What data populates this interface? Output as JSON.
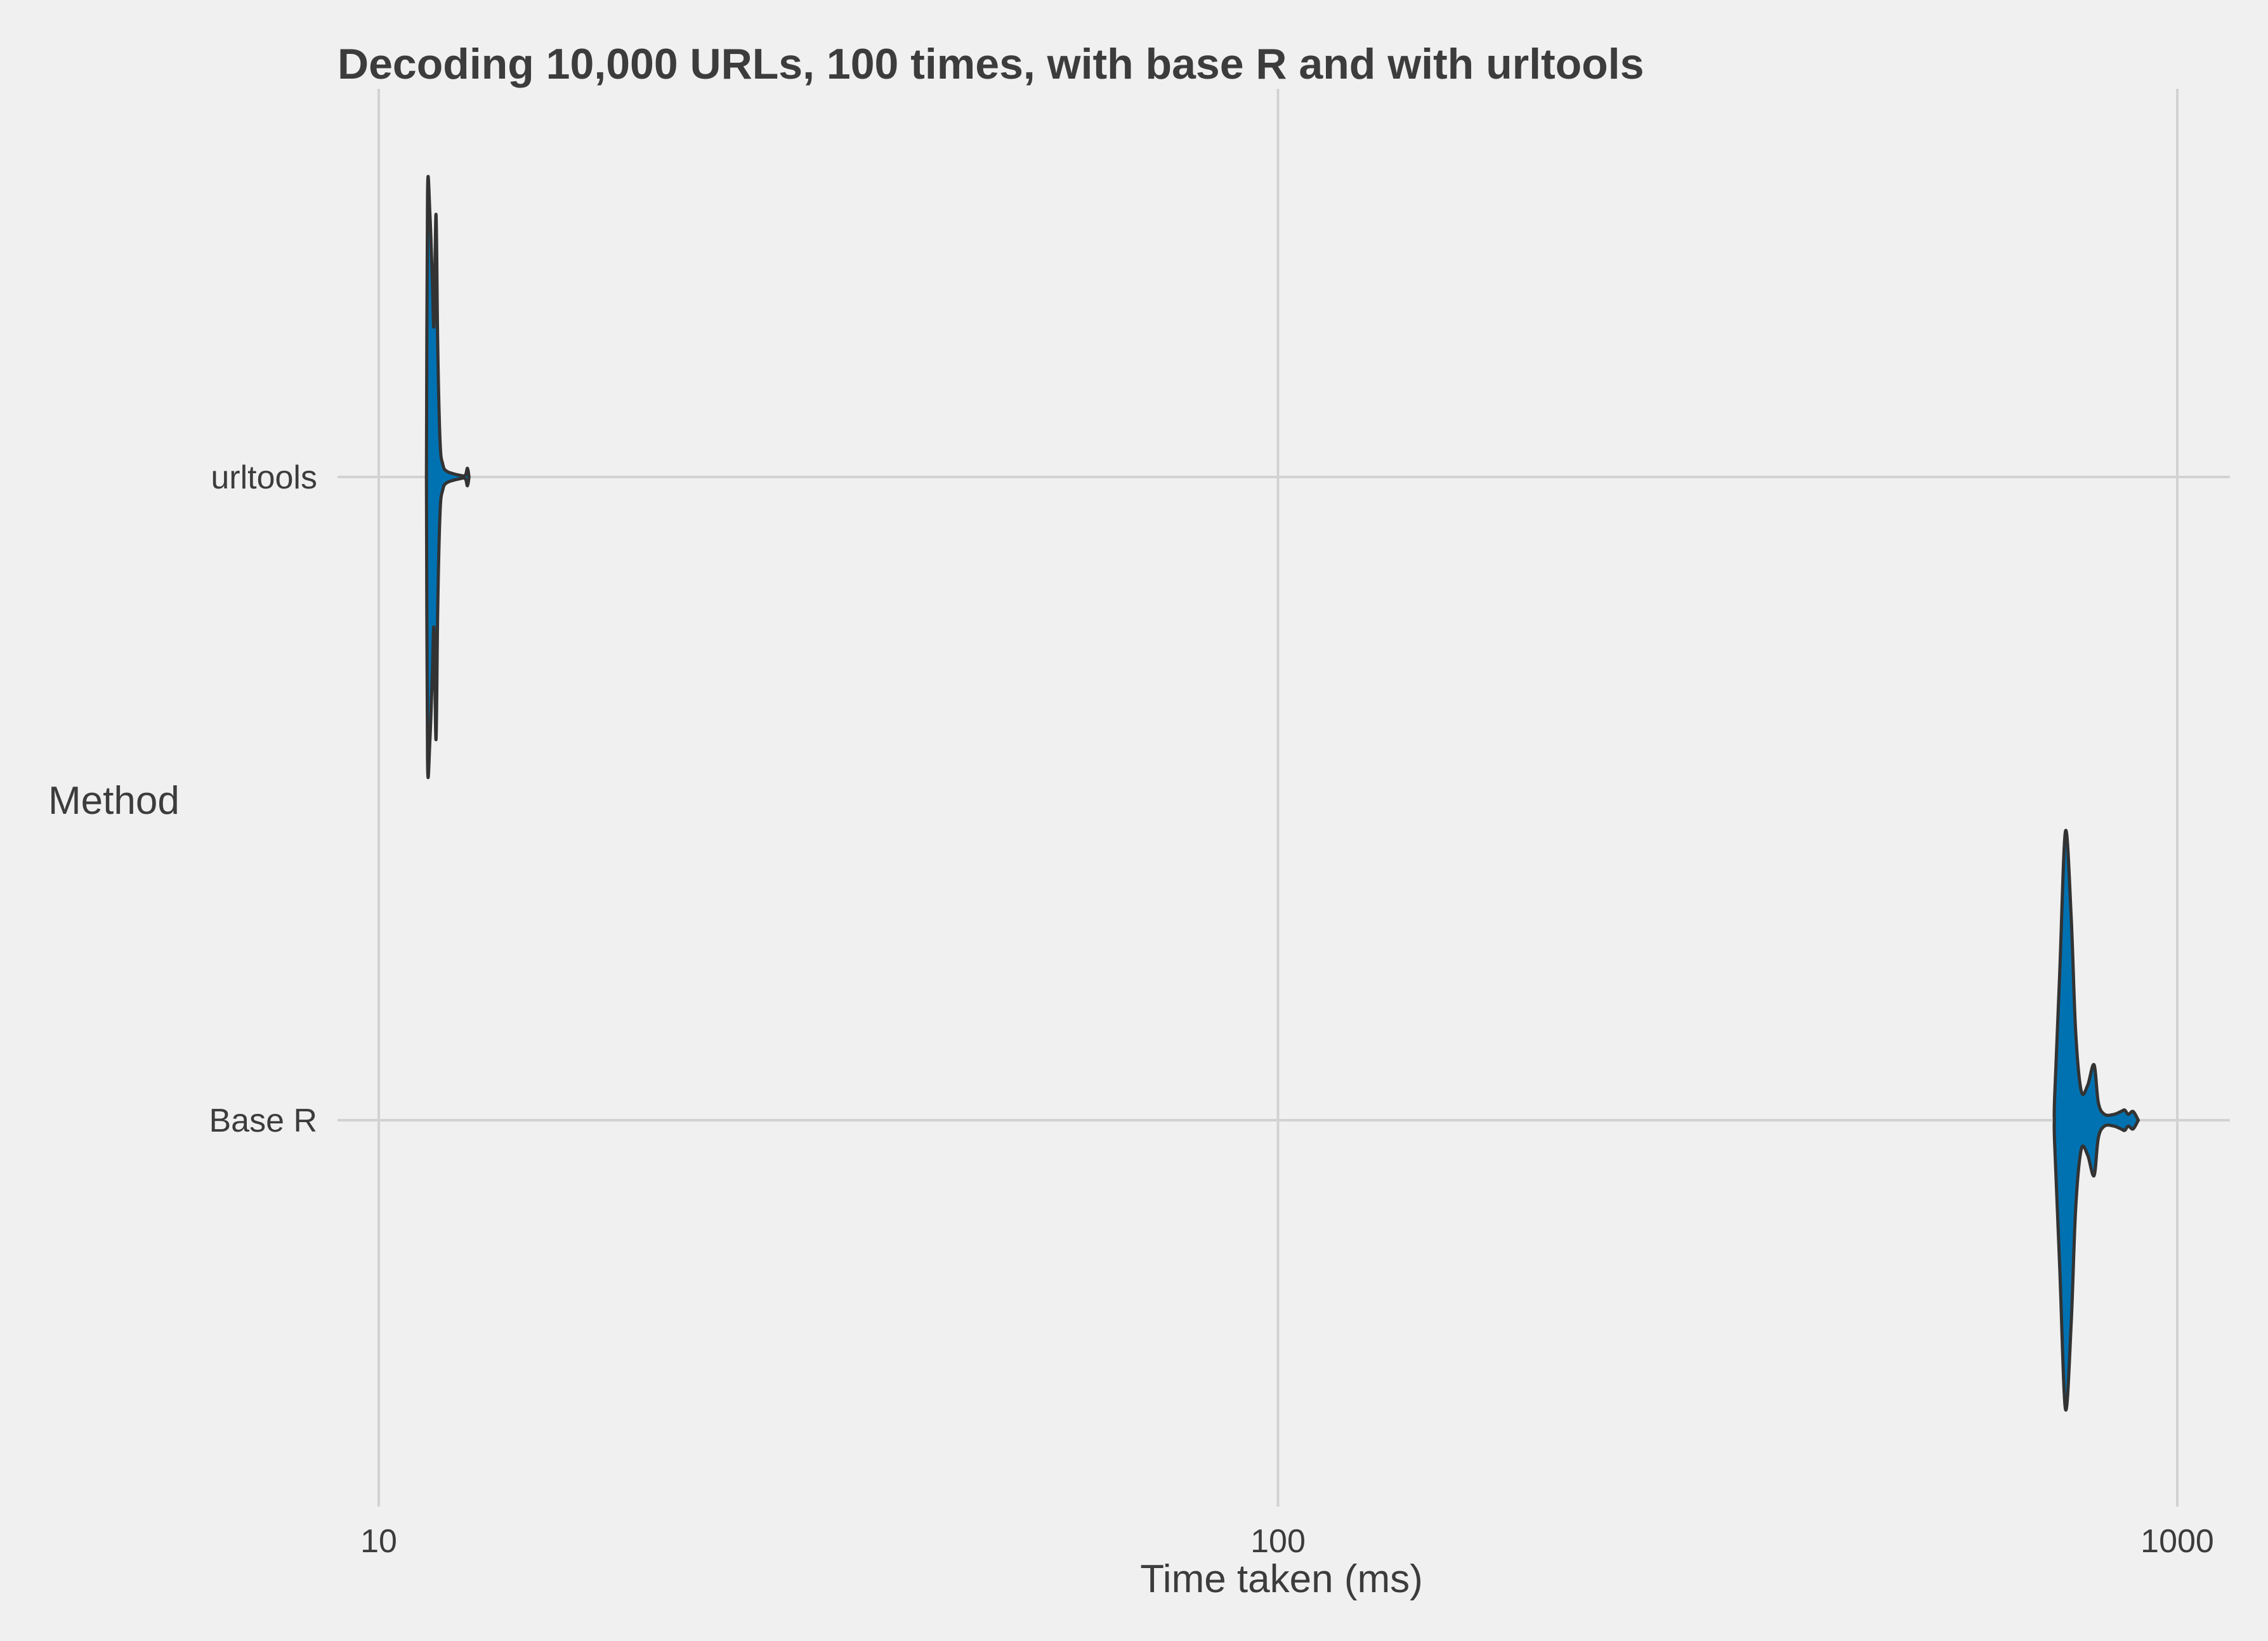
{
  "chart_data": {
    "type": "violin",
    "title": "Decoding 10,000 URLs, 100 times, with base R and with urltools",
    "xlabel": "Time taken (ms)",
    "ylabel": "Method",
    "x_scale": "log10",
    "xlim": [
      8.7,
      1090
    ],
    "x_ticks": [
      10,
      100,
      1000
    ],
    "x_tick_labels": [
      "10",
      "100",
      "1000"
    ],
    "categories": [
      "urltools",
      "Base R"
    ],
    "grid": true,
    "fill_color": "#0072b2",
    "outline_color": "#333333",
    "series": [
      {
        "category": "urltools",
        "min": 11.3,
        "max": 12.6,
        "profile": [
          [
            11.3,
            0.0
          ],
          [
            11.33,
            0.97
          ],
          [
            11.4,
            0.9
          ],
          [
            11.47,
            0.68
          ],
          [
            11.52,
            0.52
          ],
          [
            11.58,
            0.9
          ],
          [
            11.63,
            0.45
          ],
          [
            11.7,
            0.12
          ],
          [
            11.78,
            0.045
          ],
          [
            11.9,
            0.02
          ],
          [
            12.3,
            0.006
          ],
          [
            12.48,
            0.006
          ],
          [
            12.55,
            0.03
          ],
          [
            12.6,
            0.0
          ]
        ]
      },
      {
        "category": "Base R",
        "min": 730,
        "max": 905,
        "profile": [
          [
            730,
            0.0
          ],
          [
            730.5,
            0.08
          ],
          [
            740,
            0.5
          ],
          [
            751,
            0.99
          ],
          [
            762,
            0.7
          ],
          [
            771,
            0.3
          ],
          [
            782,
            0.1
          ],
          [
            795,
            0.12
          ],
          [
            808,
            0.19
          ],
          [
            817,
            0.06
          ],
          [
            830,
            0.02
          ],
          [
            850,
            0.02
          ],
          [
            866,
            0.03
          ],
          [
            874,
            0.035
          ],
          [
            882,
            0.02
          ],
          [
            893,
            0.03
          ],
          [
            905,
            0.0
          ]
        ]
      }
    ]
  }
}
